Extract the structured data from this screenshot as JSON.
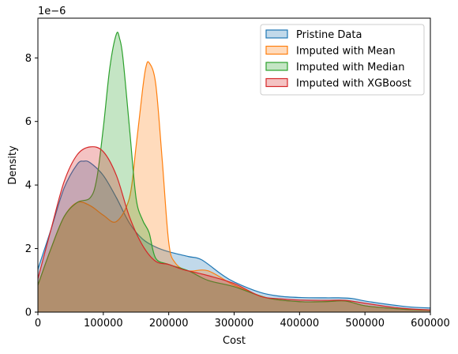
{
  "chart_data": {
    "type": "area",
    "xlabel": "Cost",
    "ylabel": "Density",
    "offset_label": "1e−6",
    "xlim": [
      0,
      600000
    ],
    "ylim": [
      0,
      9.25
    ],
    "xticks": [
      0,
      100000,
      200000,
      300000,
      400000,
      500000,
      600000
    ],
    "xtick_labels": [
      "0",
      "100000",
      "200000",
      "300000",
      "400000",
      "500000",
      "600000"
    ],
    "yticks": [
      0,
      2,
      4,
      6,
      8
    ],
    "ytick_labels": [
      "0",
      "2",
      "4",
      "6",
      "8"
    ],
    "grid": false,
    "legend_position": "top-right",
    "series": [
      {
        "name": "Pristine Data",
        "color": "#1f77b4",
        "x": [
          0,
          20000,
          40000,
          60000,
          70000,
          80000,
          100000,
          120000,
          140000,
          160000,
          180000,
          200000,
          230000,
          250000,
          280000,
          300000,
          340000,
          370000,
          400000,
          440000,
          460000,
          480000,
          500000,
          540000,
          570000,
          600000
        ],
        "values": [
          1.35,
          2.6,
          3.9,
          4.65,
          4.75,
          4.7,
          4.3,
          3.6,
          2.8,
          2.3,
          2.05,
          1.9,
          1.75,
          1.65,
          1.2,
          0.95,
          0.62,
          0.5,
          0.46,
          0.45,
          0.45,
          0.43,
          0.35,
          0.23,
          0.16,
          0.13
        ]
      },
      {
        "name": "Imputed with Mean",
        "color": "#ff7f0e",
        "x": [
          0,
          20000,
          40000,
          60000,
          80000,
          100000,
          120000,
          140000,
          150000,
          160000,
          165000,
          170000,
          180000,
          190000,
          200000,
          210000,
          230000,
          260000,
          300000,
          350000,
          400000,
          440000,
          470000,
          500000,
          540000,
          570000,
          600000
        ],
        "values": [
          0.85,
          2.0,
          3.0,
          3.45,
          3.35,
          3.05,
          2.85,
          3.6,
          5.2,
          7.0,
          7.7,
          7.85,
          7.2,
          4.8,
          2.2,
          1.55,
          1.3,
          1.3,
          0.85,
          0.45,
          0.33,
          0.33,
          0.35,
          0.2,
          0.12,
          0.08,
          0.06
        ]
      },
      {
        "name": "Imputed with Median",
        "color": "#2ca02c",
        "x": [
          0,
          20000,
          40000,
          60000,
          80000,
          90000,
          100000,
          110000,
          120000,
          125000,
          130000,
          140000,
          150000,
          160000,
          170000,
          180000,
          200000,
          230000,
          260000,
          300000,
          350000,
          400000,
          440000,
          470000,
          500000,
          540000,
          570000,
          600000
        ],
        "values": [
          0.85,
          2.0,
          3.0,
          3.45,
          3.6,
          4.2,
          5.8,
          7.7,
          8.75,
          8.6,
          8.0,
          5.8,
          3.6,
          2.9,
          2.5,
          1.7,
          1.5,
          1.3,
          1.0,
          0.8,
          0.45,
          0.33,
          0.33,
          0.35,
          0.2,
          0.12,
          0.08,
          0.06
        ]
      },
      {
        "name": "Imputed with XGBoost",
        "color": "#d62728",
        "x": [
          0,
          20000,
          40000,
          60000,
          80000,
          100000,
          120000,
          140000,
          160000,
          180000,
          200000,
          220000,
          240000,
          260000,
          300000,
          340000,
          370000,
          400000,
          440000,
          470000,
          500000,
          540000,
          570000,
          600000
        ],
        "values": [
          1.05,
          2.6,
          4.1,
          4.95,
          5.2,
          5.05,
          4.3,
          3.0,
          2.1,
          1.6,
          1.5,
          1.35,
          1.25,
          1.15,
          0.9,
          0.5,
          0.42,
          0.38,
          0.37,
          0.37,
          0.28,
          0.16,
          0.1,
          0.07
        ]
      }
    ]
  }
}
